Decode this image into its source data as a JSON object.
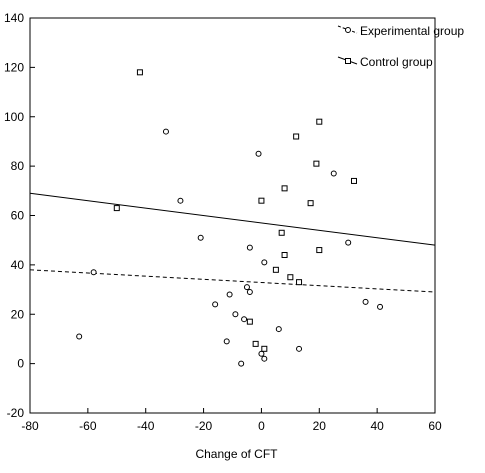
{
  "chart_data": {
    "type": "scatter",
    "xlabel": "Change of CFT",
    "ylabel": "",
    "xlim": [
      -80,
      60
    ],
    "ylim": [
      -20,
      140
    ],
    "xticks": [
      -80,
      -60,
      -40,
      -20,
      0,
      20,
      40,
      60
    ],
    "yticks": [
      -20,
      0,
      20,
      40,
      60,
      80,
      100,
      120,
      140
    ],
    "grid": false,
    "legend_position": "top-right",
    "series": [
      {
        "name": "Experimental group",
        "marker": "circle",
        "line_style": "dashed",
        "points": [
          [
            -63,
            11
          ],
          [
            -58,
            37
          ],
          [
            -33,
            94
          ],
          [
            -28,
            66
          ],
          [
            -21,
            51
          ],
          [
            -16,
            24
          ],
          [
            -12,
            9
          ],
          [
            -11,
            28
          ],
          [
            -9,
            20
          ],
          [
            -7,
            0
          ],
          [
            -6,
            18
          ],
          [
            -5,
            31
          ],
          [
            -4,
            29
          ],
          [
            -4,
            47
          ],
          [
            -1,
            85
          ],
          [
            0,
            4
          ],
          [
            1,
            2
          ],
          [
            1,
            41
          ],
          [
            6,
            14
          ],
          [
            13,
            6
          ],
          [
            25,
            77
          ],
          [
            30,
            49
          ],
          [
            36,
            25
          ],
          [
            41,
            23
          ]
        ],
        "fit_line": [
          [
            -80,
            38
          ],
          [
            60,
            29
          ]
        ]
      },
      {
        "name": "Control group",
        "marker": "square",
        "line_style": "solid",
        "points": [
          [
            -50,
            63
          ],
          [
            -42,
            118
          ],
          [
            -4,
            17
          ],
          [
            -2,
            8
          ],
          [
            0,
            66
          ],
          [
            1,
            6
          ],
          [
            5,
            38
          ],
          [
            7,
            53
          ],
          [
            8,
            44
          ],
          [
            8,
            71
          ],
          [
            10,
            35
          ],
          [
            12,
            92
          ],
          [
            13,
            33
          ],
          [
            17,
            65
          ],
          [
            19,
            81
          ],
          [
            20,
            46
          ],
          [
            20,
            98
          ],
          [
            32,
            74
          ]
        ],
        "fit_line": [
          [
            -80,
            69
          ],
          [
            60,
            48
          ]
        ]
      }
    ]
  }
}
